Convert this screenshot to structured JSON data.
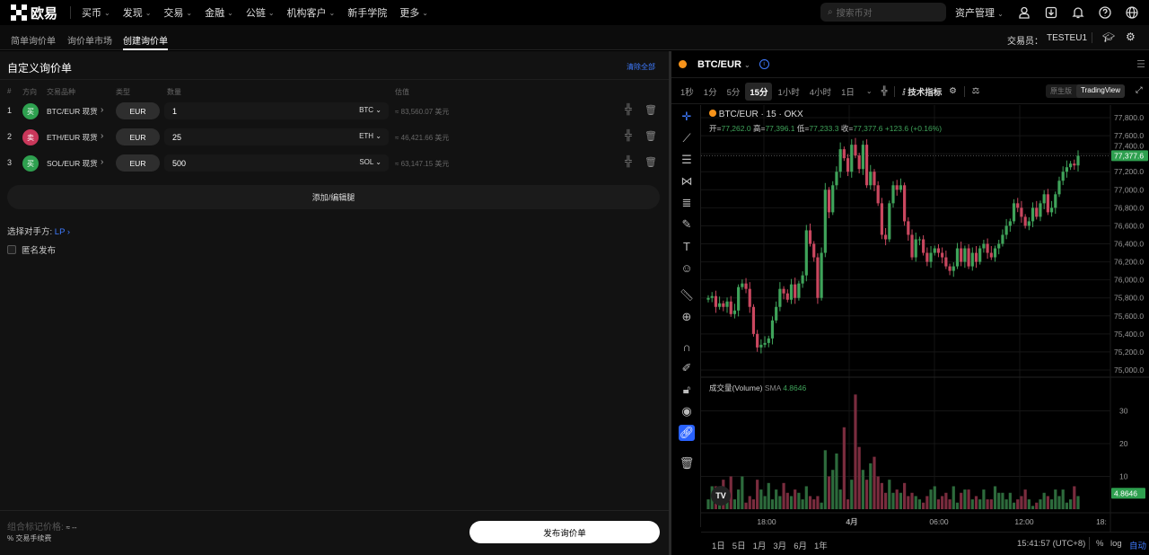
{
  "topnav": {
    "logo": "欧易",
    "items": [
      "买币",
      "发现",
      "交易",
      "金融",
      "公链",
      "机构客户",
      "新手学院",
      "更多"
    ],
    "has_chevron": [
      true,
      true,
      true,
      true,
      true,
      true,
      false,
      true
    ],
    "search_placeholder": "搜索币对",
    "asset_mgmt": "资产管理"
  },
  "subnav": {
    "tabs": [
      "简单询价单",
      "询价单市场",
      "创建询价单"
    ],
    "active": 2,
    "trader_label": "交易员：",
    "trader": "TESTEU1"
  },
  "rfq": {
    "title": "自定义询价单",
    "clear_all": "清除全部",
    "headers": {
      "index": "#",
      "side": "方向",
      "instrument": "交易品种",
      "type": "类型",
      "quantity": "数量",
      "estimate": "估值"
    },
    "rows": [
      {
        "index": "1",
        "side": "买",
        "side_color": "#2ea04f",
        "instrument": "BTC/EUR 现货",
        "ccy": "EUR",
        "qty": "1",
        "unit": "BTC",
        "est": "≈ 83,560.07 美元"
      },
      {
        "index": "2",
        "side": "卖",
        "side_color": "#c9375a",
        "instrument": "ETH/EUR 现货",
        "ccy": "EUR",
        "qty": "25",
        "unit": "ETH",
        "est": "≈ 46,421.66 美元"
      },
      {
        "index": "3",
        "side": "买",
        "side_color": "#2ea04f",
        "instrument": "SOL/EUR 现货",
        "ccy": "EUR",
        "qty": "500",
        "unit": "SOL",
        "est": "≈ 63,147.15 美元"
      }
    ],
    "add_edit": "添加/编辑腿",
    "counterparty_label": "选择对手方:",
    "counterparty": "LP",
    "anonymous": "匿名发布",
    "anonymous_checked": false,
    "mark_price_label": "组合标记价格",
    "mark_price": "≈ --",
    "fee": "% 交易手续费",
    "publish": "发布询价单"
  },
  "chart": {
    "pair": "BTC/EUR",
    "timeframes": [
      "1秒",
      "1分",
      "5分",
      "15分",
      "1小时",
      "4小时",
      "1日"
    ],
    "active_tf": "15分",
    "indicators": "技术指标",
    "versions": [
      "原生版",
      "TradingView"
    ],
    "active_version": "TradingView",
    "legend_title": "BTC/EUR · 15 · OKX",
    "ohlc": {
      "o_label": "开",
      "o": "77,262.0",
      "h_label": "高",
      "h": "77,396.1",
      "l_label": "低",
      "l": "77,233.3",
      "c_label": "收",
      "c": "77,377.6",
      "change": "+123.6 (+0.16%)"
    },
    "volume_label": "成交量(Volume)",
    "sma_label": "SMA",
    "sma_value": "4.8646",
    "ranges": [
      "1日",
      "5日",
      "1月",
      "3月",
      "6月",
      "1年"
    ],
    "time": "15:41:57 (UTC+8)",
    "pct": "%",
    "log": "log",
    "auto": "自动",
    "up_color": "#3fa35a",
    "down_color": "#c9475f"
  },
  "chart_data": {
    "type": "candlestick",
    "price_ticks": [
      "77,800.0",
      "77,600.0",
      "77,400.0",
      "77,200.0",
      "77,000.0",
      "76,800.0",
      "76,600.0",
      "76,400.0",
      "76,200.0",
      "76,000.0",
      "75,800.0",
      "75,600.0",
      "75,400.0",
      "75,200.0",
      "75,000.0"
    ],
    "price_tick_values": [
      77800,
      77600,
      77400,
      77200,
      77000,
      76800,
      76600,
      76400,
      76200,
      76000,
      75800,
      75600,
      75400,
      75200,
      75000
    ],
    "ylim": [
      74950,
      77900
    ],
    "last_price": "77,377.6",
    "x_ticks": [
      "18:00",
      "4月",
      "06:00",
      "12:00",
      "18:"
    ],
    "volume_ticks": [
      {
        "label": "30",
        "value": 30
      },
      {
        "label": "20",
        "value": 20
      },
      {
        "label": "10",
        "value": 10
      }
    ],
    "volume_ylim": [
      0,
      37
    ],
    "closes": [
      75800,
      75820,
      75700,
      75740,
      75700,
      75760,
      75620,
      75660,
      75920,
      75960,
      75900,
      75700,
      75400,
      75250,
      75280,
      75300,
      75350,
      75550,
      75700,
      75900,
      75850,
      75780,
      75950,
      75800,
      75960,
      76050,
      76550,
      76400,
      76250,
      75800,
      76300,
      77000,
      76750,
      77050,
      77200,
      77450,
      77350,
      77200,
      77500,
      77380,
      77230,
      77500,
      77050,
      77200,
      77050,
      76850,
      76500,
      76450,
      76850,
      77050,
      77000,
      77050,
      76650,
      76500,
      76250,
      76450,
      76450,
      76300,
      76200,
      76300,
      76350,
      76300,
      76250,
      76150,
      76100,
      76150,
      76350,
      76200,
      76350,
      76150,
      76300,
      76200,
      76350,
      76400,
      76300,
      76250,
      76350,
      76400,
      76500,
      76600,
      76650,
      76850,
      76800,
      76700,
      76600,
      76650,
      76800,
      76700,
      76850,
      76950,
      76750,
      76800,
      76950,
      77100,
      77200,
      77250,
      77290,
      77270,
      77377.6
    ],
    "volumes": [
      3,
      7,
      7,
      5,
      9,
      4,
      10,
      3,
      6,
      10,
      2,
      4,
      3,
      9,
      6,
      4,
      8,
      3,
      6,
      4,
      8,
      5,
      4,
      6,
      5,
      3,
      7,
      4,
      3,
      4,
      2,
      18,
      10,
      12,
      17,
      6,
      25,
      3,
      9,
      35,
      19,
      12,
      9,
      14,
      16,
      10,
      8,
      5,
      9,
      5,
      6,
      5,
      8,
      4,
      5,
      4,
      3,
      2,
      4,
      6,
      7,
      3,
      4,
      5,
      3,
      7,
      2,
      5,
      6,
      6,
      3,
      4,
      3,
      6,
      3,
      3,
      7,
      5,
      5,
      3,
      5,
      2,
      3,
      4,
      6,
      3,
      1,
      2,
      3,
      5,
      4,
      3,
      6,
      4,
      6,
      2,
      3,
      7,
      4
    ]
  }
}
